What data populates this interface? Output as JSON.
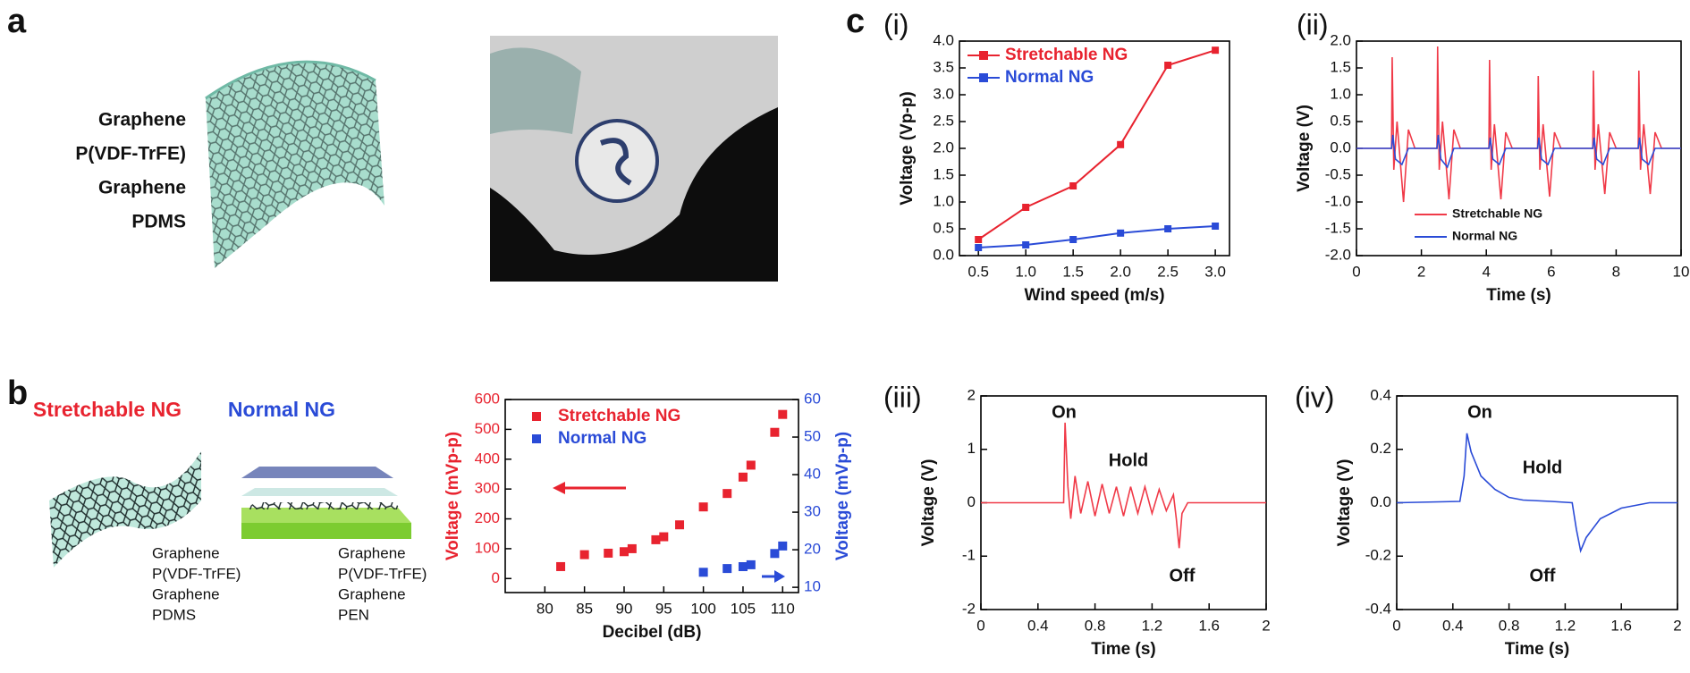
{
  "panel_labels": [
    "a",
    "b",
    "c"
  ],
  "layers_a": [
    "Graphene",
    "P(VDF-TrFE)",
    "Graphene",
    "PDMS"
  ],
  "b_titles": [
    "Stretchable NG",
    "Normal NG"
  ],
  "b_layers_stretchable": [
    "Graphene",
    "P(VDF-TrFE)",
    "Graphene",
    "PDMS"
  ],
  "b_layers_normal": [
    "Graphene",
    "P(VDF-TrFE)",
    "Graphene",
    "PEN"
  ],
  "chart_data": [
    {
      "type": "scatter",
      "xlabel": "Decibel (dB)",
      "ylabel": "Voltage (mVp-p)",
      "y2label": "Voltage (mVp-p)",
      "y_color": "#e8232f",
      "y2_color": "#2a4bd7",
      "legend": "upper left",
      "xlim": [
        75,
        112
      ],
      "xticks": [
        80,
        85,
        90,
        95,
        100,
        105,
        110
      ],
      "ylim": [
        -47,
        600
      ],
      "yticks": [
        0,
        100,
        200,
        300,
        400,
        500,
        600
      ],
      "y2lim": [
        8.6,
        60
      ],
      "y2ticks": [
        10,
        20,
        30,
        40,
        50,
        60
      ],
      "series": [
        {
          "name": "Stretchable NG",
          "color": "#e8232f",
          "x": [
            82,
            85,
            88,
            90,
            91,
            94,
            95,
            97,
            100,
            103,
            105,
            106,
            109,
            110
          ],
          "values": [
            40,
            80,
            85,
            90,
            100,
            130,
            140,
            180,
            240,
            285,
            340,
            380,
            490,
            550
          ]
        },
        {
          "name": "Normal NG",
          "color": "#2a4bd7",
          "axis": "y2",
          "x": [
            100,
            103,
            105,
            106,
            109,
            110
          ],
          "values": [
            14,
            15,
            15.5,
            16,
            19,
            21
          ]
        }
      ]
    },
    {
      "type": "line",
      "label": "(i)",
      "markers": true,
      "xlabel": "Wind speed (m/s)",
      "ylabel": "Voltage (Vp-p)",
      "legend": "upper left",
      "xlim": [
        0.3,
        3.15
      ],
      "xticks": [
        {
          "value": 0.5,
          "label": "0.5"
        },
        {
          "value": 1,
          "label": "1.0"
        },
        {
          "value": 1.5,
          "label": "1.5"
        },
        {
          "value": 2,
          "label": "2.0"
        },
        {
          "value": 2.5,
          "label": "2.5"
        },
        {
          "value": 3,
          "label": "3.0"
        }
      ],
      "ylim": [
        0,
        4
      ],
      "yticks": [
        {
          "value": 0,
          "label": "0.0"
        },
        {
          "value": 0.5,
          "label": "0.5"
        },
        {
          "value": 1,
          "label": "1.0"
        },
        {
          "value": 1.5,
          "label": "1.5"
        },
        {
          "value": 2,
          "label": "2.0"
        },
        {
          "value": 2.5,
          "label": "2.5"
        },
        {
          "value": 3,
          "label": "3.0"
        },
        {
          "value": 3.5,
          "label": "3.5"
        },
        {
          "value": 4,
          "label": "4.0"
        }
      ],
      "x": [
        0.5,
        1,
        1.5,
        2,
        2.5,
        3
      ],
      "series": [
        {
          "name": "Stretchable NG",
          "color": "#e8232f",
          "values": [
            0.3,
            0.9,
            1.3,
            2.07,
            3.55,
            3.83
          ]
        },
        {
          "name": "Normal NG",
          "color": "#2a4bd7",
          "values": [
            0.15,
            0.2,
            0.3,
            0.42,
            0.5,
            0.55
          ]
        }
      ]
    },
    {
      "type": "line",
      "label": "(ii)",
      "xlabel": "Time (s)",
      "ylabel": "Voltage (V)",
      "legend": "lower right",
      "xlim": [
        0,
        10
      ],
      "xticks": [
        0,
        2,
        4,
        6,
        8,
        10
      ],
      "ylim": [
        -2,
        2
      ],
      "yticks": [
        {
          "value": -2,
          "label": "-2.0"
        },
        {
          "value": -1.5,
          "label": "-1.5"
        },
        {
          "value": -1,
          "label": "-1.0"
        },
        {
          "value": -0.5,
          "label": "-0.5"
        },
        {
          "value": 0,
          "label": "0.0"
        },
        {
          "value": 0.5,
          "label": "0.5"
        },
        {
          "value": 1,
          "label": "1.0"
        },
        {
          "value": 1.5,
          "label": "1.5"
        },
        {
          "value": 2,
          "label": "2.0"
        }
      ],
      "series": [
        {
          "name": "Stretchable NG",
          "color": "#f03a48",
          "x": [
            0,
            1.08,
            1.1,
            1.15,
            1.25,
            1.45,
            1.6,
            1.8,
            2.48,
            2.5,
            2.55,
            2.65,
            2.85,
            3.0,
            3.2,
            4.08,
            4.1,
            4.15,
            4.25,
            4.45,
            4.6,
            4.8,
            5.58,
            5.6,
            5.65,
            5.75,
            5.95,
            6.1,
            6.3,
            7.28,
            7.3,
            7.35,
            7.45,
            7.65,
            7.8,
            8.0,
            8.68,
            8.7,
            8.75,
            8.85,
            9.05,
            9.2,
            9.4,
            10
          ],
          "values": [
            0,
            0,
            1.7,
            -0.4,
            0.5,
            -1.0,
            0.35,
            0,
            0,
            1.9,
            -0.4,
            0.5,
            -0.95,
            0.35,
            0,
            0,
            1.65,
            -0.4,
            0.45,
            -0.95,
            0.3,
            0,
            0,
            1.35,
            -0.4,
            0.45,
            -0.9,
            0.3,
            0,
            0,
            1.45,
            -0.4,
            0.45,
            -0.85,
            0.3,
            0,
            0,
            1.45,
            -0.4,
            0.45,
            -0.85,
            0.3,
            0,
            0
          ]
        },
        {
          "name": "Normal NG",
          "color": "#2a4bd7",
          "x": [
            0,
            1.08,
            1.12,
            1.2,
            1.4,
            1.6,
            2.48,
            2.52,
            2.6,
            2.8,
            3.0,
            4.08,
            4.12,
            4.2,
            4.4,
            4.6,
            5.58,
            5.62,
            5.7,
            5.9,
            6.1,
            7.28,
            7.32,
            7.4,
            7.6,
            7.8,
            8.68,
            8.72,
            8.8,
            9.0,
            9.2,
            10
          ],
          "values": [
            0,
            0,
            0.25,
            -0.2,
            -0.3,
            0,
            0,
            0.25,
            -0.2,
            -0.35,
            0,
            0,
            0.2,
            -0.2,
            -0.3,
            0,
            0,
            0.2,
            -0.2,
            -0.3,
            0,
            0,
            0.2,
            -0.2,
            -0.3,
            0,
            0,
            0.2,
            -0.2,
            -0.3,
            0,
            0
          ]
        }
      ]
    },
    {
      "type": "line",
      "label": "(iii)",
      "xlabel": "Time (s)",
      "ylabel": "Voltage (V)",
      "annotations": [
        "On",
        "Hold",
        "Off"
      ],
      "xlim": [
        0,
        2
      ],
      "xticks": [
        0,
        0.4,
        0.8,
        1.2,
        1.6,
        2
      ],
      "ylim": [
        -2,
        2
      ],
      "yticks": [
        -2,
        -1,
        0,
        1,
        2
      ],
      "series": [
        {
          "name": "Stretchable NG",
          "color": "#f03a48",
          "x": [
            0,
            0.55,
            0.58,
            0.59,
            0.61,
            0.63,
            0.66,
            0.7,
            0.75,
            0.8,
            0.85,
            0.9,
            0.95,
            1.0,
            1.05,
            1.1,
            1.15,
            1.2,
            1.25,
            1.3,
            1.35,
            1.37,
            1.39,
            1.41,
            1.45,
            2
          ],
          "values": [
            0,
            0,
            0,
            1.5,
            0.3,
            -0.3,
            0.5,
            -0.2,
            0.4,
            -0.25,
            0.35,
            -0.2,
            0.3,
            -0.25,
            0.3,
            -0.2,
            0.3,
            -0.2,
            0.25,
            -0.15,
            0.15,
            -0.3,
            -0.85,
            -0.2,
            0,
            0
          ]
        }
      ]
    },
    {
      "type": "line",
      "label": "(iv)",
      "xlabel": "Time (s)",
      "ylabel": "Voltage (V)",
      "annotations": [
        "On",
        "Hold",
        "Off"
      ],
      "xlim": [
        0,
        2
      ],
      "xticks": [
        0,
        0.4,
        0.8,
        1.2,
        1.6,
        2
      ],
      "ylim": [
        -0.4,
        0.4
      ],
      "yticks": [
        -0.4,
        -0.2,
        {
          "value": 0,
          "label": "0.0"
        },
        0.2,
        0.4
      ],
      "series": [
        {
          "name": "Normal NG",
          "color": "#2a4bd7",
          "x": [
            0,
            0.45,
            0.48,
            0.5,
            0.53,
            0.6,
            0.7,
            0.8,
            0.9,
            1.1,
            1.25,
            1.28,
            1.31,
            1.35,
            1.45,
            1.6,
            1.8,
            2
          ],
          "values": [
            0,
            0.005,
            0.1,
            0.26,
            0.19,
            0.1,
            0.05,
            0.02,
            0.01,
            0.005,
            0,
            -0.1,
            -0.18,
            -0.13,
            -0.06,
            -0.02,
            0,
            0
          ]
        }
      ]
    }
  ]
}
